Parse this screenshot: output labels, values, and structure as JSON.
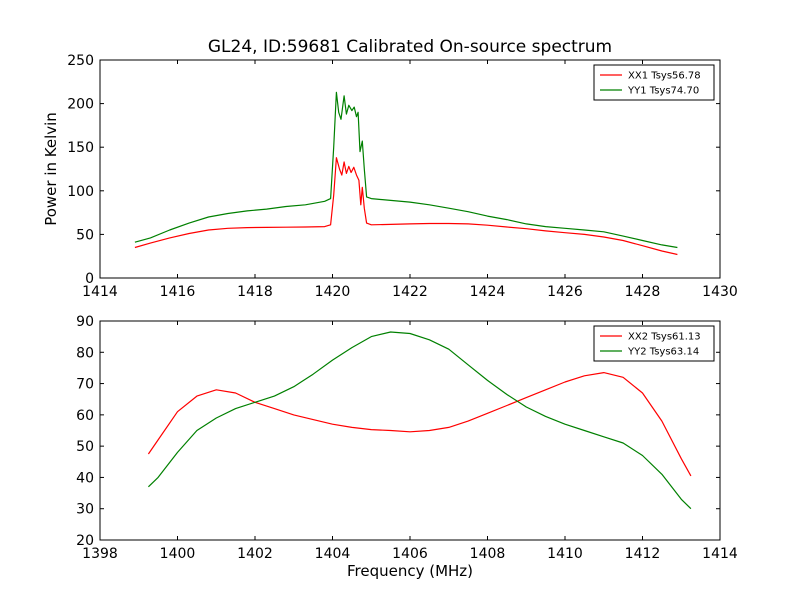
{
  "colors": {
    "background": "#ffffff",
    "axis": "#000000",
    "xx": "#ff0000",
    "yy": "#008000"
  },
  "chart_data": [
    {
      "type": "line",
      "title": "GL24, ID:59681 Calibrated On-source spectrum",
      "xlabel": "",
      "ylabel": "Power in Kelvin",
      "xlim": [
        1414,
        1430
      ],
      "ylim": [
        0,
        250
      ],
      "xticks": [
        "1414",
        "1416",
        "1418",
        "1420",
        "1422",
        "1424",
        "1426",
        "1428",
        "1430"
      ],
      "yticks": [
        "0",
        "50",
        "100",
        "150",
        "200",
        "250"
      ],
      "grid": false,
      "legend_position": "top-right",
      "series": [
        {
          "name": "XX1 Tsys56.78",
          "color": "#ff0000",
          "points": [
            [
              1414.9,
              35
            ],
            [
              1415.3,
              40
            ],
            [
              1415.8,
              46
            ],
            [
              1416.3,
              51
            ],
            [
              1416.8,
              55
            ],
            [
              1417.3,
              57
            ],
            [
              1417.8,
              57.8
            ],
            [
              1418.3,
              58
            ],
            [
              1418.8,
              58.2
            ],
            [
              1419.3,
              58.5
            ],
            [
              1419.8,
              59
            ],
            [
              1419.95,
              61
            ],
            [
              1420.03,
              95
            ],
            [
              1420.1,
              138
            ],
            [
              1420.18,
              125
            ],
            [
              1420.24,
              118
            ],
            [
              1420.3,
              133
            ],
            [
              1420.36,
              120
            ],
            [
              1420.42,
              128
            ],
            [
              1420.48,
              121
            ],
            [
              1420.55,
              127
            ],
            [
              1420.62,
              118
            ],
            [
              1420.68,
              112
            ],
            [
              1420.73,
              84
            ],
            [
              1420.77,
              104
            ],
            [
              1420.82,
              80
            ],
            [
              1420.88,
              63
            ],
            [
              1421.0,
              61
            ],
            [
              1421.5,
              61.5
            ],
            [
              1422.0,
              62
            ],
            [
              1422.5,
              62.5
            ],
            [
              1423.0,
              62.5
            ],
            [
              1423.5,
              62
            ],
            [
              1424.0,
              60.5
            ],
            [
              1424.5,
              58.5
            ],
            [
              1425.0,
              56.5
            ],
            [
              1425.5,
              54
            ],
            [
              1426.0,
              52
            ],
            [
              1426.5,
              50
            ],
            [
              1427.0,
              47
            ],
            [
              1427.5,
              43
            ],
            [
              1428.0,
              37
            ],
            [
              1428.5,
              31
            ],
            [
              1428.9,
              27
            ]
          ]
        },
        {
          "name": "YY1 Tsys74.70",
          "color": "#008000",
          "points": [
            [
              1414.9,
              41
            ],
            [
              1415.3,
              46
            ],
            [
              1415.8,
              55
            ],
            [
              1416.3,
              63
            ],
            [
              1416.8,
              70
            ],
            [
              1417.3,
              74
            ],
            [
              1417.8,
              77
            ],
            [
              1418.3,
              79
            ],
            [
              1418.8,
              82
            ],
            [
              1419.3,
              84
            ],
            [
              1419.8,
              88
            ],
            [
              1419.95,
              91
            ],
            [
              1420.03,
              150
            ],
            [
              1420.1,
              213
            ],
            [
              1420.16,
              190
            ],
            [
              1420.22,
              182
            ],
            [
              1420.3,
              209
            ],
            [
              1420.36,
              188
            ],
            [
              1420.42,
              198
            ],
            [
              1420.5,
              192
            ],
            [
              1420.56,
              196
            ],
            [
              1420.62,
              185
            ],
            [
              1420.66,
              190
            ],
            [
              1420.71,
              145
            ],
            [
              1420.77,
              157
            ],
            [
              1420.82,
              125
            ],
            [
              1420.88,
              93
            ],
            [
              1421.0,
              91
            ],
            [
              1421.5,
              89
            ],
            [
              1422.0,
              87
            ],
            [
              1422.5,
              84
            ],
            [
              1423.0,
              80
            ],
            [
              1423.5,
              76
            ],
            [
              1424.0,
              71
            ],
            [
              1424.5,
              67
            ],
            [
              1425.0,
              62
            ],
            [
              1425.5,
              59
            ],
            [
              1426.0,
              57
            ],
            [
              1426.5,
              55
            ],
            [
              1427.0,
              53
            ],
            [
              1427.5,
              48
            ],
            [
              1428.0,
              43
            ],
            [
              1428.5,
              38
            ],
            [
              1428.9,
              35
            ]
          ]
        }
      ]
    },
    {
      "type": "line",
      "title": "",
      "xlabel": "Frequency (MHz)",
      "ylabel": "",
      "xlim": [
        1398,
        1414
      ],
      "ylim": [
        20,
        90
      ],
      "xticks": [
        "1398",
        "1400",
        "1402",
        "1404",
        "1406",
        "1408",
        "1410",
        "1412",
        "1414"
      ],
      "yticks": [
        "20",
        "30",
        "40",
        "50",
        "60",
        "70",
        "80",
        "90"
      ],
      "grid": false,
      "legend_position": "top-right",
      "series": [
        {
          "name": "XX2 Tsys61.13",
          "color": "#ff0000",
          "points": [
            [
              1399.25,
              47.5
            ],
            [
              1399.5,
              52
            ],
            [
              1400.0,
              61
            ],
            [
              1400.5,
              66
            ],
            [
              1401.0,
              68
            ],
            [
              1401.5,
              67
            ],
            [
              1402.0,
              64
            ],
            [
              1402.5,
              62
            ],
            [
              1403.0,
              60
            ],
            [
              1403.5,
              58.5
            ],
            [
              1404.0,
              57
            ],
            [
              1404.5,
              56
            ],
            [
              1405.0,
              55.3
            ],
            [
              1405.5,
              55
            ],
            [
              1406.0,
              54.6
            ],
            [
              1406.5,
              55
            ],
            [
              1407.0,
              56
            ],
            [
              1407.5,
              58
            ],
            [
              1408.0,
              60.5
            ],
            [
              1408.5,
              63
            ],
            [
              1409.0,
              65.5
            ],
            [
              1409.5,
              68
            ],
            [
              1410.0,
              70.5
            ],
            [
              1410.5,
              72.5
            ],
            [
              1411.0,
              73.5
            ],
            [
              1411.5,
              72
            ],
            [
              1412.0,
              67
            ],
            [
              1412.5,
              58
            ],
            [
              1413.0,
              46
            ],
            [
              1413.25,
              40.5
            ]
          ]
        },
        {
          "name": "YY2 Tsys63.14",
          "color": "#008000",
          "points": [
            [
              1399.25,
              37
            ],
            [
              1399.5,
              40
            ],
            [
              1400.0,
              48
            ],
            [
              1400.5,
              55
            ],
            [
              1401.0,
              59
            ],
            [
              1401.5,
              62
            ],
            [
              1402.0,
              64
            ],
            [
              1402.5,
              66
            ],
            [
              1403.0,
              69
            ],
            [
              1403.5,
              73
            ],
            [
              1404.0,
              77.5
            ],
            [
              1404.5,
              81.5
            ],
            [
              1405.0,
              85
            ],
            [
              1405.5,
              86.5
            ],
            [
              1406.0,
              86
            ],
            [
              1406.5,
              84
            ],
            [
              1407.0,
              81
            ],
            [
              1407.5,
              76
            ],
            [
              1408.0,
              71
            ],
            [
              1408.5,
              66.5
            ],
            [
              1409.0,
              62.5
            ],
            [
              1409.5,
              59.5
            ],
            [
              1410.0,
              57
            ],
            [
              1410.5,
              55
            ],
            [
              1411.0,
              53
            ],
            [
              1411.5,
              51
            ],
            [
              1412.0,
              47
            ],
            [
              1412.5,
              41
            ],
            [
              1413.0,
              33
            ],
            [
              1413.25,
              30
            ]
          ]
        }
      ]
    }
  ]
}
